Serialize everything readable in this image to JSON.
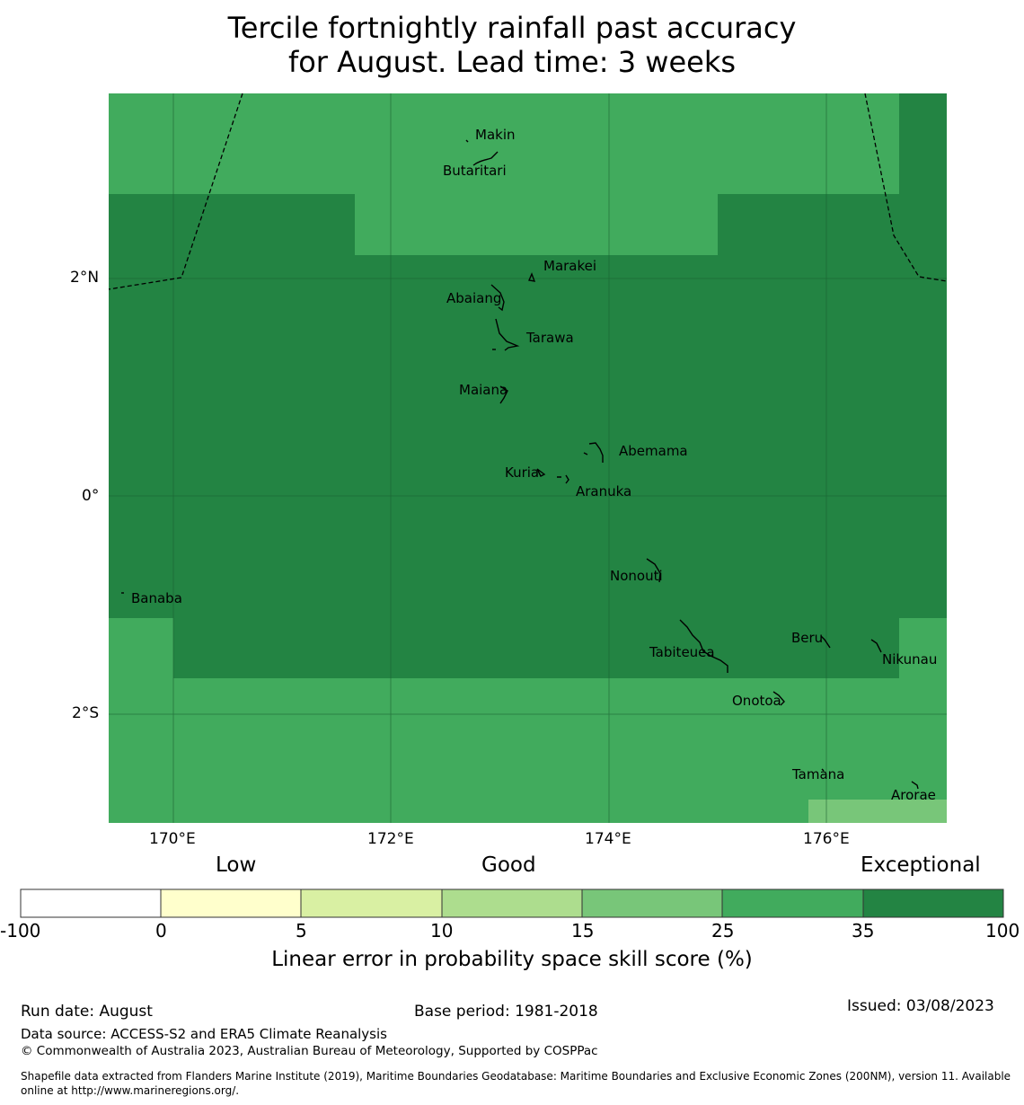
{
  "title": {
    "line1": "Tercile fortnightly rainfall past accuracy",
    "line2": "for August. Lead time: 3 weeks"
  },
  "colors": {
    "band_0_5": "#ffffcc",
    "band_5_10": "#d9f0a3",
    "band_10_15": "#addd8e",
    "band_15_25": "#78c679",
    "band_25_35": "#41ab5d",
    "band_35_100": "#238443",
    "gridline": "#1a5e30",
    "boundary": "#000000"
  },
  "map": {
    "lon_ticks": [
      "170°E",
      "172°E",
      "174°E",
      "176°E"
    ],
    "lat_ticks": [
      "2°N",
      "0°",
      "2°S"
    ],
    "islands": [
      {
        "name": "Makin"
      },
      {
        "name": "Butaritari"
      },
      {
        "name": "Marakei"
      },
      {
        "name": "Abaiang"
      },
      {
        "name": "Tarawa"
      },
      {
        "name": "Maiana"
      },
      {
        "name": "Abemama"
      },
      {
        "name": "Kuria"
      },
      {
        "name": "Aranuka"
      },
      {
        "name": "Nonouti"
      },
      {
        "name": "Banaba"
      },
      {
        "name": "Tabiteuea"
      },
      {
        "name": "Beru"
      },
      {
        "name": "Nikunau"
      },
      {
        "name": "Onotoa"
      },
      {
        "name": "Tamana"
      },
      {
        "name": "Arorae"
      }
    ]
  },
  "legend": {
    "categories": [
      "Low",
      "Good",
      "Exceptional"
    ],
    "ticks": [
      "-100",
      "0",
      "5",
      "10",
      "15",
      "25",
      "35",
      "100"
    ],
    "colorbar_title": "Linear error in probability space skill score (%)"
  },
  "footer": {
    "run_date": "Run date: August",
    "base_period": "Base period: 1981-2018",
    "issued": "Issued: 03/08/2023",
    "data_source": "Data source: ACCESS-S2 and ERA5 Climate Reanalysis",
    "copyright": "© Commonwealth of Australia 2023, Australian Bureau of Meteorology, Supported by COSPPac",
    "shapefile_line1": "Shapefile data extracted from Flanders Marine Institute (2019), Maritime Boundaries Geodatabase: Maritime Boundaries and Exclusive Economic Zones (200NM), version 11. Available",
    "shapefile_line2": "online at http://www.marineregions.org/."
  }
}
